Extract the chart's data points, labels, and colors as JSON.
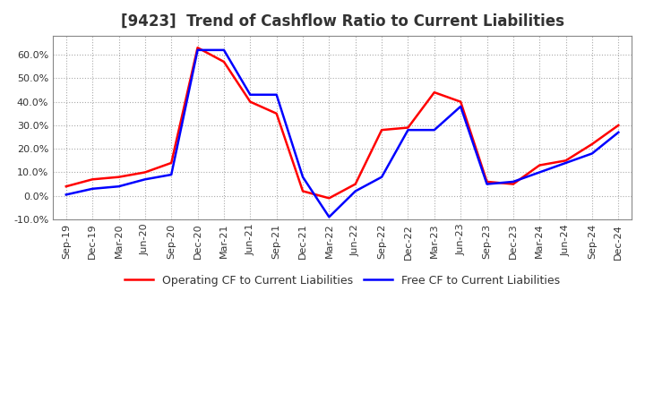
{
  "title": "[9423]  Trend of Cashflow Ratio to Current Liabilities",
  "x_labels": [
    "Sep-19",
    "Dec-19",
    "Mar-20",
    "Jun-20",
    "Sep-20",
    "Dec-20",
    "Mar-21",
    "Jun-21",
    "Sep-21",
    "Dec-21",
    "Mar-22",
    "Jun-22",
    "Sep-22",
    "Dec-22",
    "Mar-23",
    "Jun-23",
    "Sep-23",
    "Dec-23",
    "Mar-24",
    "Jun-24",
    "Sep-24",
    "Dec-24"
  ],
  "operating_cf": [
    4.0,
    7.0,
    8.0,
    10.0,
    14.0,
    63.0,
    57.0,
    40.0,
    35.0,
    2.0,
    -1.0,
    5.0,
    28.0,
    29.0,
    44.0,
    40.0,
    6.0,
    5.0,
    13.0,
    15.0,
    22.0,
    30.0
  ],
  "free_cf": [
    0.5,
    3.0,
    4.0,
    7.0,
    9.0,
    62.0,
    62.0,
    43.0,
    43.0,
    8.0,
    -9.0,
    2.0,
    8.0,
    28.0,
    28.0,
    38.0,
    5.0,
    6.0,
    10.0,
    14.0,
    18.0,
    27.0
  ],
  "operating_color": "#ff0000",
  "free_color": "#0000ff",
  "ylim": [
    -10.0,
    68.0
  ],
  "yticks": [
    -10.0,
    0.0,
    10.0,
    20.0,
    30.0,
    40.0,
    50.0,
    60.0
  ],
  "grid_color": "#aaaaaa",
  "background_color": "#ffffff",
  "plot_bg_color": "#ffffff",
  "legend_op": "Operating CF to Current Liabilities",
  "legend_free": "Free CF to Current Liabilities",
  "title_fontsize": 12,
  "tick_fontsize": 8,
  "legend_fontsize": 9
}
